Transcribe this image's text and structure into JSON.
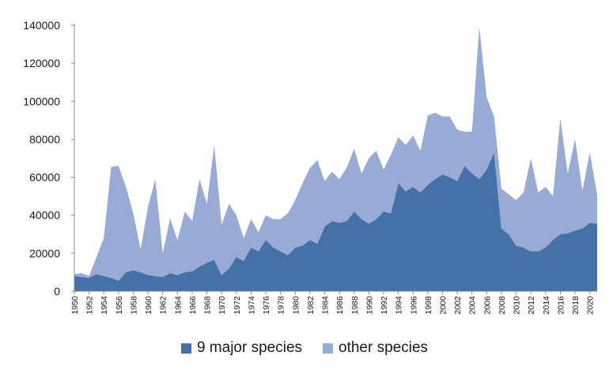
{
  "chart_data": {
    "type": "area",
    "stacked": true,
    "title": "",
    "xlabel": "",
    "ylabel": "",
    "ylim": [
      0,
      140000
    ],
    "yticks": [
      0,
      20000,
      40000,
      60000,
      80000,
      100000,
      120000,
      140000
    ],
    "ytick_labels": [
      "0",
      "20000",
      "40000",
      "60000",
      "80000",
      "100000",
      "120000",
      "140000"
    ],
    "xlim": [
      1950,
      2021
    ],
    "xticks": [
      1950,
      1952,
      1954,
      1956,
      1958,
      1960,
      1962,
      1964,
      1966,
      1968,
      1970,
      1972,
      1974,
      1976,
      1978,
      1980,
      1982,
      1984,
      1986,
      1988,
      1990,
      1992,
      1994,
      1996,
      1998,
      2000,
      2002,
      2004,
      2006,
      2008,
      2010,
      2012,
      2014,
      2016,
      2018,
      2020
    ],
    "xtick_labels": [
      "1950",
      "1952",
      "1954",
      "1956",
      "1958",
      "1960",
      "1962",
      "1964",
      "1966",
      "1968",
      "1970",
      "1972",
      "1974",
      "1976",
      "1978",
      "1980",
      "1982",
      "1984",
      "1986",
      "1988",
      "1990",
      "1992",
      "1994",
      "1996",
      "1998",
      "2000",
      "2002",
      "2004",
      "2006",
      "2008",
      "2010",
      "2012",
      "2014",
      "2016",
      "2018",
      "2020"
    ],
    "x": [
      1950,
      1951,
      1952,
      1953,
      1954,
      1955,
      1956,
      1957,
      1958,
      1959,
      1960,
      1961,
      1962,
      1963,
      1964,
      1965,
      1966,
      1967,
      1968,
      1969,
      1970,
      1971,
      1972,
      1973,
      1974,
      1975,
      1976,
      1977,
      1978,
      1979,
      1980,
      1981,
      1982,
      1983,
      1984,
      1985,
      1986,
      1987,
      1988,
      1989,
      1990,
      1991,
      1992,
      1993,
      1994,
      1995,
      1996,
      1997,
      1998,
      1999,
      2000,
      2001,
      2002,
      2003,
      2004,
      2005,
      2006,
      2007,
      2008,
      2009,
      2010,
      2011,
      2012,
      2013,
      2014,
      2015,
      2016,
      2017,
      2018,
      2019,
      2020,
      2021
    ],
    "grid": false,
    "legend_position": "bottom",
    "series": [
      {
        "name": "9 major species",
        "color": "#4472a8",
        "values": [
          8000,
          7500,
          7000,
          9000,
          8000,
          7000,
          5500,
          10000,
          11000,
          10000,
          8500,
          8000,
          7500,
          9500,
          8500,
          10000,
          10500,
          13000,
          15000,
          16500,
          8500,
          12000,
          18000,
          16000,
          23000,
          21000,
          27000,
          23000,
          21000,
          19000,
          23000,
          24000,
          27000,
          25000,
          34000,
          37000,
          36000,
          37000,
          42000,
          38000,
          35500,
          38000,
          42000,
          41000,
          57000,
          52500,
          55000,
          52000,
          56000,
          59000,
          61500,
          60000,
          58000,
          66000,
          62000,
          59000,
          64000,
          73000,
          33000,
          30000,
          24000,
          23000,
          21000,
          21000,
          23000,
          27000,
          30000,
          30500,
          32000,
          33000,
          36000,
          35500
        ]
      },
      {
        "name": "other species",
        "color": "#98abd4",
        "values": [
          1000,
          2000,
          1000,
          9000,
          20000,
          58500,
          60500,
          45000,
          30000,
          12000,
          36000,
          51000,
          12500,
          29000,
          18500,
          32000,
          26500,
          46000,
          31000,
          60500,
          26500,
          34000,
          22000,
          12000,
          15000,
          10000,
          13000,
          15000,
          17000,
          22000,
          25000,
          33000,
          38000,
          44000,
          24000,
          26000,
          23000,
          28000,
          33000,
          24000,
          34500,
          36000,
          22000,
          31000,
          24000,
          24500,
          27000,
          22000,
          36500,
          35000,
          30500,
          32000,
          27000,
          18000,
          22000,
          80000,
          38000,
          19000,
          21000,
          21000,
          24000,
          29000,
          49000,
          31000,
          32000,
          23000,
          61000,
          31500,
          48000,
          20000,
          37000,
          15500
        ]
      }
    ]
  }
}
